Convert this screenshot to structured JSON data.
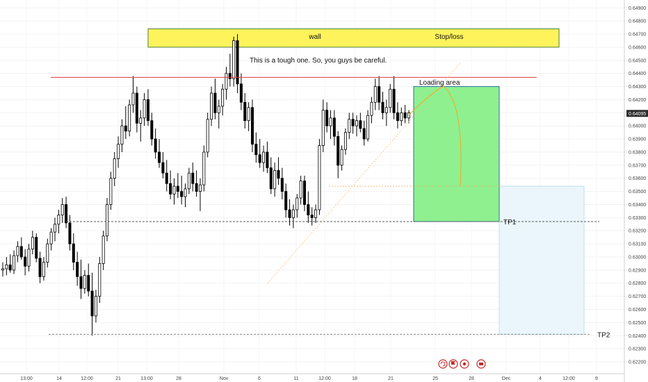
{
  "chart_data": {
    "type": "candlestick",
    "title": "",
    "xlabel": "",
    "ylabel": "",
    "ylim": [
      0.6211,
      0.6496
    ],
    "y_ticks": [
      "0.64900",
      "0.64800",
      "0.64700",
      "0.64600",
      "0.64500",
      "0.64400",
      "0.64300",
      "0.64200",
      "0.64100",
      "0.64000",
      "0.63900",
      "0.63800",
      "0.63700",
      "0.63600",
      "0.63500",
      "0.63400",
      "0.63300",
      "0.63200",
      "0.63100",
      "0.63000",
      "0.62900",
      "0.62800",
      "0.62700",
      "0.62600",
      "0.62500",
      "0.62400",
      "0.62300",
      "0.62200"
    ],
    "current_price": "0.64095",
    "x_ticks": [
      "13:00",
      "14",
      "12:00",
      "21",
      "13:00",
      "28",
      "Nov",
      "6",
      "11",
      "12:00",
      "18",
      "21",
      "25",
      "28",
      "Dec",
      "4",
      "12:00",
      "9"
    ],
    "grid": true,
    "series": [
      {
        "type": "candles",
        "values": [
          [
            0.629,
            0.6296,
            0.6285,
            0.6291
          ],
          [
            0.6291,
            0.63,
            0.6286,
            0.6294
          ],
          [
            0.6294,
            0.6302,
            0.6288,
            0.629
          ],
          [
            0.629,
            0.6305,
            0.6287,
            0.6301
          ],
          [
            0.6301,
            0.6312,
            0.6296,
            0.6308
          ],
          [
            0.6308,
            0.6315,
            0.6298,
            0.63
          ],
          [
            0.63,
            0.6306,
            0.6286,
            0.6293
          ],
          [
            0.6293,
            0.631,
            0.6289,
            0.6306
          ],
          [
            0.6306,
            0.632,
            0.6302,
            0.6315
          ],
          [
            0.6315,
            0.6318,
            0.6296,
            0.6299
          ],
          [
            0.6299,
            0.6304,
            0.628,
            0.6285
          ],
          [
            0.6285,
            0.63,
            0.6282,
            0.6296
          ],
          [
            0.6296,
            0.6314,
            0.6292,
            0.631
          ],
          [
            0.631,
            0.6322,
            0.6305,
            0.6319
          ],
          [
            0.6319,
            0.633,
            0.6312,
            0.6325
          ],
          [
            0.6325,
            0.6336,
            0.6318,
            0.6332
          ],
          [
            0.6332,
            0.6345,
            0.6326,
            0.634
          ],
          [
            0.634,
            0.6346,
            0.6322,
            0.6326
          ],
          [
            0.6326,
            0.6332,
            0.6305,
            0.631
          ],
          [
            0.631,
            0.6318,
            0.629,
            0.6296
          ],
          [
            0.6296,
            0.6304,
            0.6278,
            0.6285
          ],
          [
            0.6285,
            0.6298,
            0.6268,
            0.6276
          ],
          [
            0.6276,
            0.629,
            0.6272,
            0.6286
          ],
          [
            0.6286,
            0.6295,
            0.627,
            0.6274
          ],
          [
            0.6274,
            0.6288,
            0.624,
            0.6255
          ],
          [
            0.6255,
            0.6275,
            0.625,
            0.627
          ],
          [
            0.627,
            0.63,
            0.6265,
            0.6295
          ],
          [
            0.6295,
            0.632,
            0.629,
            0.6316
          ],
          [
            0.6316,
            0.6345,
            0.6312,
            0.634
          ],
          [
            0.634,
            0.6365,
            0.6336,
            0.636
          ],
          [
            0.636,
            0.638,
            0.6354,
            0.6375
          ],
          [
            0.6375,
            0.6392,
            0.6368,
            0.6386
          ],
          [
            0.6386,
            0.6405,
            0.638,
            0.64
          ],
          [
            0.64,
            0.6415,
            0.639,
            0.6396
          ],
          [
            0.6396,
            0.642,
            0.6392,
            0.6416
          ],
          [
            0.6416,
            0.6438,
            0.641,
            0.6425
          ],
          [
            0.6425,
            0.643,
            0.6395,
            0.6402
          ],
          [
            0.6402,
            0.6412,
            0.6388,
            0.6406
          ],
          [
            0.6406,
            0.6425,
            0.64,
            0.642
          ],
          [
            0.642,
            0.6428,
            0.64,
            0.6404
          ],
          [
            0.6404,
            0.641,
            0.6385,
            0.639
          ],
          [
            0.639,
            0.6398,
            0.6375,
            0.638
          ],
          [
            0.638,
            0.639,
            0.6368,
            0.6372
          ],
          [
            0.6372,
            0.638,
            0.636,
            0.6364
          ],
          [
            0.6364,
            0.6374,
            0.635,
            0.6356
          ],
          [
            0.6356,
            0.6366,
            0.6344,
            0.6348
          ],
          [
            0.6348,
            0.636,
            0.634,
            0.6354
          ],
          [
            0.6354,
            0.6364,
            0.6345,
            0.635
          ],
          [
            0.635,
            0.6362,
            0.634,
            0.6346
          ],
          [
            0.6346,
            0.6356,
            0.6338,
            0.6352
          ],
          [
            0.6352,
            0.6368,
            0.6348,
            0.6364
          ],
          [
            0.6364,
            0.6372,
            0.635,
            0.6356
          ],
          [
            0.6356,
            0.6366,
            0.6346,
            0.635
          ],
          [
            0.635,
            0.636,
            0.6335,
            0.6355
          ],
          [
            0.6355,
            0.6385,
            0.635,
            0.638
          ],
          [
            0.638,
            0.641,
            0.6376,
            0.6405
          ],
          [
            0.6405,
            0.643,
            0.64,
            0.6425
          ],
          [
            0.6425,
            0.6436,
            0.6405,
            0.641
          ],
          [
            0.641,
            0.642,
            0.6398,
            0.6415
          ],
          [
            0.6415,
            0.6432,
            0.6408,
            0.6428
          ],
          [
            0.6428,
            0.6445,
            0.642,
            0.644
          ],
          [
            0.644,
            0.6455,
            0.643,
            0.6436
          ],
          [
            0.6436,
            0.6468,
            0.643,
            0.6465
          ],
          [
            0.6465,
            0.647,
            0.6425,
            0.6432
          ],
          [
            0.6432,
            0.644,
            0.6412,
            0.6418
          ],
          [
            0.6418,
            0.6425,
            0.6398,
            0.6404
          ],
          [
            0.6404,
            0.6418,
            0.6396,
            0.6414
          ],
          [
            0.6414,
            0.642,
            0.638,
            0.6386
          ],
          [
            0.6386,
            0.6395,
            0.6372,
            0.6378
          ],
          [
            0.6378,
            0.639,
            0.6368,
            0.6372
          ],
          [
            0.6372,
            0.6385,
            0.6365,
            0.638
          ],
          [
            0.638,
            0.6388,
            0.6364,
            0.6368
          ],
          [
            0.6368,
            0.6376,
            0.6348,
            0.6352
          ],
          [
            0.6352,
            0.6372,
            0.6346,
            0.6366
          ],
          [
            0.6366,
            0.6376,
            0.6355,
            0.636
          ],
          [
            0.636,
            0.6368,
            0.6344,
            0.635
          ],
          [
            0.635,
            0.6356,
            0.633,
            0.6336
          ],
          [
            0.6336,
            0.6344,
            0.6324,
            0.633
          ],
          [
            0.633,
            0.634,
            0.6322,
            0.6336
          ],
          [
            0.6336,
            0.6348,
            0.633,
            0.6345
          ],
          [
            0.6345,
            0.6362,
            0.634,
            0.6358
          ],
          [
            0.6358,
            0.6362,
            0.6335,
            0.634
          ],
          [
            0.634,
            0.635,
            0.6326,
            0.6332
          ],
          [
            0.6332,
            0.6338,
            0.6324,
            0.633
          ],
          [
            0.633,
            0.634,
            0.6326,
            0.6336
          ],
          [
            0.6336,
            0.639,
            0.6332,
            0.6385
          ],
          [
            0.6385,
            0.642,
            0.638,
            0.6412
          ],
          [
            0.6412,
            0.6418,
            0.6395,
            0.64
          ],
          [
            0.64,
            0.6412,
            0.639,
            0.6406
          ],
          [
            0.6406,
            0.6412,
            0.6385,
            0.6392
          ],
          [
            0.6392,
            0.6396,
            0.636,
            0.637
          ],
          [
            0.637,
            0.6385,
            0.6366,
            0.6382
          ],
          [
            0.6382,
            0.6398,
            0.6378,
            0.6395
          ],
          [
            0.6395,
            0.641,
            0.639,
            0.6405
          ],
          [
            0.6405,
            0.641,
            0.6394,
            0.64
          ],
          [
            0.64,
            0.6408,
            0.6392,
            0.6404
          ],
          [
            0.6404,
            0.641,
            0.6395,
            0.6398
          ],
          [
            0.6398,
            0.6404,
            0.6385,
            0.639
          ],
          [
            0.639,
            0.6412,
            0.6388,
            0.6408
          ],
          [
            0.6408,
            0.6422,
            0.6402,
            0.6418
          ],
          [
            0.6418,
            0.6436,
            0.6412,
            0.643
          ],
          [
            0.643,
            0.6438,
            0.6412,
            0.6418
          ],
          [
            0.6418,
            0.6426,
            0.6405,
            0.641
          ],
          [
            0.641,
            0.642,
            0.64,
            0.6414
          ],
          [
            0.6414,
            0.6432,
            0.641,
            0.6428
          ],
          [
            0.6428,
            0.6438,
            0.6405,
            0.641
          ],
          [
            0.641,
            0.6418,
            0.6398,
            0.6404
          ],
          [
            0.6404,
            0.6414,
            0.64,
            0.641
          ],
          [
            0.641,
            0.6416,
            0.6402,
            0.6406
          ],
          [
            0.6406,
            0.6412,
            0.6402,
            0.641
          ]
        ]
      }
    ],
    "annotations": {
      "wall_label": "wall",
      "stoploss_label": "Stop/loss",
      "note": "This is a tough one. So, you guys be careful.",
      "loading_label": "Loading area",
      "tp1_label": "TP1",
      "tp2_label": "TP2",
      "resistance_level": 0.6437,
      "tp1_level": 0.6327,
      "tp2_level": 0.6241,
      "stop_zone": [
        0.646,
        0.6474
      ],
      "loading_zone": [
        0.6327,
        0.643
      ],
      "target_zone": [
        0.6241,
        0.6354
      ],
      "colors": {
        "up_candle": "#ffffff",
        "down_candle": "#000000",
        "wick": "#000000",
        "resistance": "#e53935",
        "stop_zone": "#fff35c",
        "loading_zone": "#8ff08f",
        "target_zone": "#eaf6fb",
        "curve": "#f5a623"
      }
    }
  }
}
